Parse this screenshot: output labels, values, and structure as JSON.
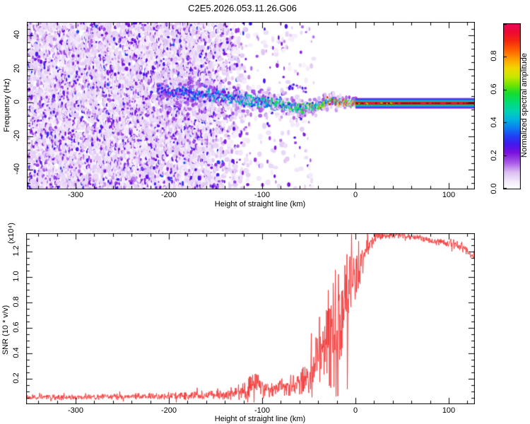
{
  "title": "C2E5.2026.053.11.26.G06",
  "chart_data": [
    {
      "type": "heatmap",
      "name": "radio-occultation-spectrogram",
      "xlabel": "Height of straight line (km)",
      "ylabel": "Frequency (Hz)",
      "xlim": [
        -352.3,
        128
      ],
      "ylim": [
        -51.8,
        48
      ],
      "xticks": [
        "-300",
        "-200",
        "-100",
        "0",
        "100"
      ],
      "yticks": [
        "-40",
        "-20",
        "0",
        "20",
        "40"
      ],
      "x_minor_step_km": 20,
      "y_minor_step_hz": 4,
      "grid": false,
      "colorbar": {
        "label": "Normalized spectral amplitude",
        "ticks": [
          "0.0",
          "0.2",
          "0.4",
          "0.6",
          "0.8"
        ],
        "lim": [
          0,
          1
        ]
      },
      "colormap_stops": [
        [
          0.0,
          "#ffffff"
        ],
        [
          0.04,
          "#f6eefc"
        ],
        [
          0.1,
          "#dcc0f2"
        ],
        [
          0.16,
          "#a958e8"
        ],
        [
          0.22,
          "#7a10dd"
        ],
        [
          0.27,
          "#4418ee"
        ],
        [
          0.32,
          "#2040f5"
        ],
        [
          0.37,
          "#0b7ef0"
        ],
        [
          0.42,
          "#00b4e0"
        ],
        [
          0.47,
          "#00d2b4"
        ],
        [
          0.52,
          "#00dc78"
        ],
        [
          0.58,
          "#16dd2e"
        ],
        [
          0.63,
          "#74e400"
        ],
        [
          0.68,
          "#c8e800"
        ],
        [
          0.73,
          "#f0d800"
        ],
        [
          0.78,
          "#ffa400"
        ],
        [
          0.84,
          "#ff5f00"
        ],
        [
          0.9,
          "#f42312"
        ],
        [
          0.95,
          "#ee0a32"
        ],
        [
          1.0,
          "#e9095c"
        ]
      ],
      "noise_field": {
        "full_density_until_km": -170,
        "fade_to_zero_at_km": -108,
        "sparse_until_km": -45,
        "amplitude_range": [
          0.03,
          0.33
        ]
      },
      "signal_band_path_km_hz": [
        [
          -212,
          6
        ],
        [
          -195,
          6
        ],
        [
          -178,
          5
        ],
        [
          -160,
          4.5
        ],
        [
          -145,
          3.5
        ],
        [
          -130,
          2.5
        ],
        [
          -115,
          1.5
        ],
        [
          -100,
          0.5
        ],
        [
          -88,
          -0.5
        ],
        [
          -76,
          -1.8
        ],
        [
          -64,
          -3
        ],
        [
          -54,
          -3.6
        ],
        [
          -46,
          -3.2
        ],
        [
          -38,
          -1.5
        ],
        [
          -30,
          0.8
        ],
        [
          -24,
          1.2
        ],
        [
          -18,
          0
        ],
        [
          -10,
          -0.4
        ],
        [
          0,
          -0.4
        ]
      ],
      "secondary_arc_km_hz": [
        [
          -82,
          2
        ],
        [
          -74,
          7
        ],
        [
          -66,
          10
        ],
        [
          -58,
          9
        ],
        [
          -52,
          5
        ]
      ],
      "locked_carrier_line": {
        "x_start_km": 0,
        "x_end_km": 128,
        "freq_hz": -0.5,
        "layers_out_to_in": [
          "violet",
          "blue",
          "cyan",
          "green",
          "red-core"
        ]
      }
    },
    {
      "type": "line",
      "name": "snr-profile",
      "xlabel": "Height of straight line (km)",
      "ylabel": "SNR (10 * v/v)",
      "scale_label": "(x10⁴)",
      "xlim": [
        -352.3,
        128
      ],
      "ylim": [
        0,
        1.344
      ],
      "xticks": [
        "-300",
        "-200",
        "-100",
        "0",
        "100"
      ],
      "yticks": [
        "0.2",
        "0.4",
        "0.6",
        "0.8",
        "1.0",
        "1.2"
      ],
      "x_minor_step_km": 20,
      "y_minor_step": 0.05,
      "grid": false,
      "line_color": "#f23333",
      "series_anchors_km_base_noise": [
        [
          -352,
          0.055,
          0.025
        ],
        [
          -300,
          0.055,
          0.025
        ],
        [
          -240,
          0.06,
          0.03
        ],
        [
          -190,
          0.065,
          0.035
        ],
        [
          -160,
          0.07,
          0.04
        ],
        [
          -135,
          0.08,
          0.05
        ],
        [
          -118,
          0.1,
          0.09
        ],
        [
          -108,
          0.16,
          0.13
        ],
        [
          -98,
          0.13,
          0.1
        ],
        [
          -88,
          0.12,
          0.08
        ],
        [
          -72,
          0.14,
          0.1
        ],
        [
          -60,
          0.17,
          0.13
        ],
        [
          -50,
          0.22,
          0.18
        ],
        [
          -42,
          0.3,
          0.26
        ],
        [
          -35,
          0.42,
          0.38
        ],
        [
          -28,
          0.55,
          0.5
        ],
        [
          -22,
          0.65,
          0.6
        ],
        [
          -16,
          0.72,
          0.58
        ],
        [
          -10,
          0.82,
          0.52
        ],
        [
          -5,
          0.92,
          0.45
        ],
        [
          0,
          1.02,
          0.34
        ],
        [
          5,
          1.12,
          0.24
        ],
        [
          10,
          1.2,
          0.16
        ],
        [
          15,
          1.27,
          0.09
        ],
        [
          20,
          1.31,
          0.05
        ],
        [
          30,
          1.33,
          0.035
        ],
        [
          45,
          1.33,
          0.03
        ],
        [
          60,
          1.315,
          0.03
        ],
        [
          80,
          1.29,
          0.03
        ],
        [
          95,
          1.27,
          0.035
        ],
        [
          105,
          1.26,
          0.04
        ],
        [
          115,
          1.235,
          0.045
        ],
        [
          121,
          1.19,
          0.05
        ],
        [
          125,
          1.15,
          0.045
        ],
        [
          128,
          1.19,
          0.04
        ]
      ]
    }
  ]
}
